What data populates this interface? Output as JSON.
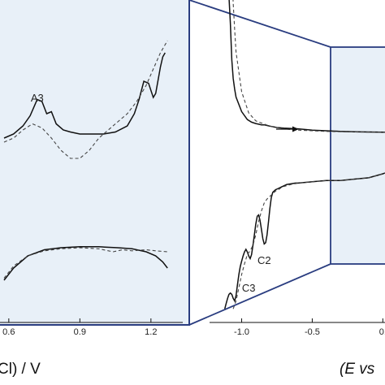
{
  "colors": {
    "panel_fill": "#e8f0f8",
    "frame": "#2a3d80",
    "solid_trace": "#111111",
    "dashed_trace": "#444444"
  },
  "chart_data": [
    {
      "type": "line",
      "name_hint": "zoomed-detail",
      "x_ticks": [
        "0.6",
        "0.9",
        "1.2"
      ],
      "x_tick_values": [
        0.6,
        0.9,
        1.2
      ],
      "xlim": [
        0.58,
        1.3
      ],
      "xlabel": "Cl) / V",
      "annotations": [
        {
          "text": "A3",
          "x": 0.72,
          "y": 0.78
        }
      ],
      "series": [
        {
          "style": "solid",
          "x": [
            0.58,
            0.62,
            0.66,
            0.69,
            0.72,
            0.74,
            0.76,
            0.78,
            0.8,
            0.83,
            0.86,
            0.9,
            0.95,
            1.0,
            1.05,
            1.1,
            1.13,
            1.15,
            1.17,
            1.19,
            1.21,
            1.22,
            1.24,
            1.25,
            1.26
          ],
          "y": [
            0.6,
            0.62,
            0.66,
            0.71,
            0.79,
            0.78,
            0.72,
            0.73,
            0.67,
            0.64,
            0.63,
            0.62,
            0.62,
            0.62,
            0.63,
            0.66,
            0.72,
            0.79,
            0.88,
            0.87,
            0.8,
            0.82,
            0.95,
            1.0,
            1.02
          ]
        },
        {
          "style": "dashed",
          "x": [
            0.58,
            0.62,
            0.66,
            0.7,
            0.74,
            0.78,
            0.82,
            0.86,
            0.9,
            0.94,
            0.98,
            1.02,
            1.06,
            1.1,
            1.14,
            1.18,
            1.21,
            1.24,
            1.26,
            1.27
          ],
          "y": [
            0.58,
            0.6,
            0.64,
            0.67,
            0.65,
            0.6,
            0.54,
            0.5,
            0.5,
            0.54,
            0.6,
            0.64,
            0.68,
            0.72,
            0.78,
            0.86,
            0.94,
            1.02,
            1.06,
            1.08
          ]
        },
        {
          "style": "solid",
          "x": [
            0.58,
            0.62,
            0.68,
            0.75,
            0.82,
            0.9,
            0.98,
            1.06,
            1.12,
            1.18,
            1.22,
            1.25,
            1.27
          ],
          "y": [
            -0.1,
            -0.04,
            0.02,
            0.05,
            0.06,
            0.065,
            0.065,
            0.06,
            0.055,
            0.04,
            0.02,
            -0.01,
            -0.04
          ]
        },
        {
          "style": "dashed",
          "x": [
            0.58,
            0.62,
            0.68,
            0.75,
            0.82,
            0.9,
            0.98,
            1.04,
            1.08,
            1.12,
            1.18,
            1.22,
            1.27
          ],
          "y": [
            -0.09,
            -0.03,
            0.02,
            0.045,
            0.055,
            0.06,
            0.055,
            0.04,
            0.05,
            0.045,
            0.05,
            0.045,
            0.04
          ]
        }
      ]
    },
    {
      "type": "line",
      "name_hint": "full-scan",
      "x_ticks": [
        "-1.0",
        "-0.5",
        "0."
      ],
      "x_tick_values": [
        -1.0,
        -0.5,
        0.0
      ],
      "xlim": [
        -1.17,
        0.05
      ],
      "xlabel": "(E vs",
      "annotations": [
        {
          "text": "C2",
          "x": -0.84,
          "y": -0.52
        },
        {
          "text": "C3",
          "x": -0.95,
          "y": -0.73
        }
      ],
      "series": [
        {
          "style": "solid",
          "x": [
            -1.1,
            -1.08,
            -1.07,
            -1.06,
            -1.05,
            -1.04,
            -1.0,
            -0.96,
            -0.93,
            -0.9,
            -0.88,
            -0.86,
            -0.84,
            -0.82,
            -0.8,
            -0.75,
            -0.7,
            -0.6,
            -0.5,
            -0.4,
            -0.3,
            -0.2,
            -0.1,
            0.0,
            0.05
          ],
          "y": [
            1.7,
            1.3,
            1.02,
            0.88,
            0.8,
            0.74,
            0.63,
            0.57,
            0.55,
            0.54,
            0.535,
            0.53,
            0.53,
            0.525,
            0.52,
            0.51,
            0.505,
            0.5,
            0.49,
            0.485,
            0.48,
            0.478,
            0.476,
            0.475,
            0.474
          ]
        },
        {
          "style": "dashed",
          "x": [
            -1.07,
            -1.06,
            -1.05,
            -1.04,
            -1.0,
            -0.95,
            -0.9,
            -0.85,
            -0.8,
            -0.7,
            -0.6,
            -0.5,
            -0.4,
            -0.3,
            -0.2,
            -0.1,
            0.0,
            0.05
          ],
          "y": [
            1.7,
            1.45,
            1.25,
            1.08,
            0.78,
            0.62,
            0.56,
            0.54,
            0.52,
            0.5,
            0.49,
            0.485,
            0.48,
            0.478,
            0.476,
            0.475,
            0.474,
            0.473
          ]
        },
        {
          "style": "solid",
          "x": [
            -1.12,
            -1.11,
            -1.1,
            -1.09,
            -1.08,
            -1.07,
            -1.06,
            -1.05,
            -1.04,
            -1.03,
            -1.02,
            -1.01,
            -1.0,
            -0.99,
            -0.98,
            -0.97,
            -0.96,
            -0.95,
            -0.94,
            -0.93,
            -0.92,
            -0.91,
            -0.9,
            -0.89,
            -0.88,
            -0.87,
            -0.86,
            -0.85,
            -0.84,
            -0.83,
            -0.82,
            -0.81,
            -0.8,
            -0.79,
            -0.78,
            -0.76,
            -0.74,
            -0.72,
            -0.7,
            -0.68,
            -0.65,
            -0.62,
            -0.6,
            -0.5,
            -0.4,
            -0.3,
            -0.2,
            -0.1,
            0.0,
            0.05
          ],
          "y": [
            -0.86,
            -0.82,
            -0.78,
            -0.75,
            -0.74,
            -0.75,
            -0.78,
            -0.8,
            -0.76,
            -0.68,
            -0.6,
            -0.54,
            -0.5,
            -0.46,
            -0.43,
            -0.41,
            -0.43,
            -0.46,
            -0.48,
            -0.45,
            -0.38,
            -0.3,
            -0.22,
            -0.16,
            -0.15,
            -0.19,
            -0.26,
            -0.33,
            -0.37,
            -0.36,
            -0.3,
            -0.2,
            -0.1,
            -0.02,
            0.02,
            0.04,
            0.05,
            0.06,
            0.07,
            0.08,
            0.085,
            0.09,
            0.09,
            0.1,
            0.11,
            0.11,
            0.12,
            0.13,
            0.16,
            0.18
          ]
        },
        {
          "style": "dashed",
          "x": [
            -1.06,
            -1.04,
            -1.02,
            -1.0,
            -0.98,
            -0.96,
            -0.94,
            -0.92,
            -0.9,
            -0.88,
            -0.86,
            -0.84,
            -0.82,
            -0.8,
            -0.78,
            -0.76,
            -0.74,
            -0.72,
            -0.7,
            -0.65,
            -0.6,
            -0.5,
            -0.4,
            -0.3,
            -0.2,
            -0.1,
            0.0,
            0.05
          ],
          "y": [
            -0.86,
            -0.8,
            -0.7,
            -0.6,
            -0.52,
            -0.45,
            -0.42,
            -0.38,
            -0.3,
            -0.2,
            -0.12,
            -0.06,
            -0.03,
            -0.01,
            0.01,
            0.03,
            0.04,
            0.055,
            0.065,
            0.08,
            0.09,
            0.1,
            0.11,
            0.11,
            0.12,
            0.13,
            0.16,
            0.18
          ]
        }
      ]
    }
  ]
}
